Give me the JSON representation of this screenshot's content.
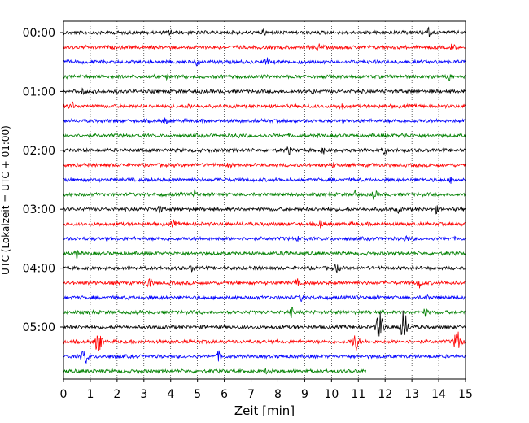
{
  "chart_data": {
    "type": "line",
    "title": "",
    "xlabel": "Zeit  [min]",
    "ylabel": "UTC (Lokalzeit = UTC + 01:00)",
    "xlim": [
      0,
      15
    ],
    "x_ticks": [
      "0",
      "1",
      "2",
      "3",
      "4",
      "5",
      "6",
      "7",
      "8",
      "9",
      "10",
      "11",
      "12",
      "13",
      "14",
      "15"
    ],
    "row_interval_min": 15,
    "row_colors": [
      "#000000",
      "#ff0000",
      "#0000ff",
      "#008000"
    ],
    "y_tick_labels": [
      {
        "row": 0,
        "label": "00:00"
      },
      {
        "row": 4,
        "label": "01:00"
      },
      {
        "row": 8,
        "label": "02:00"
      },
      {
        "row": 12,
        "label": "03:00"
      },
      {
        "row": 16,
        "label": "04:00"
      },
      {
        "row": 20,
        "label": "05:00"
      }
    ],
    "grid": "vertical dotted",
    "series": [
      {
        "start": "00:00",
        "color": "#000000",
        "end_min": 15,
        "bursts": [
          {
            "t": 4.0,
            "a": 3
          },
          {
            "t": 7.5,
            "a": 3
          },
          {
            "t": 13.6,
            "a": 5
          }
        ]
      },
      {
        "start": "00:15",
        "color": "#ff0000",
        "end_min": 15,
        "bursts": [
          {
            "t": 9.5,
            "a": 4
          },
          {
            "t": 14.5,
            "a": 4
          }
        ]
      },
      {
        "start": "00:30",
        "color": "#0000ff",
        "end_min": 15,
        "bursts": [
          {
            "t": 5.0,
            "a": 3
          },
          {
            "t": 7.6,
            "a": 4
          }
        ]
      },
      {
        "start": "00:45",
        "color": "#008000",
        "end_min": 15,
        "bursts": [
          {
            "t": 3.9,
            "a": 3
          },
          {
            "t": 14.4,
            "a": 4
          }
        ]
      },
      {
        "start": "01:00",
        "color": "#000000",
        "end_min": 15,
        "bursts": [
          {
            "t": 0.7,
            "a": 2
          },
          {
            "t": 9.3,
            "a": 3
          }
        ]
      },
      {
        "start": "01:15",
        "color": "#ff0000",
        "end_min": 15,
        "bursts": [
          {
            "t": 0.3,
            "a": 4
          },
          {
            "t": 4.7,
            "a": 3
          },
          {
            "t": 10.4,
            "a": 3
          }
        ]
      },
      {
        "start": "01:30",
        "color": "#0000ff",
        "end_min": 15,
        "bursts": [
          {
            "t": 3.8,
            "a": 3
          }
        ]
      },
      {
        "start": "01:45",
        "color": "#008000",
        "end_min": 15,
        "bursts": [
          {
            "t": 6.5,
            "a": 2
          },
          {
            "t": 12.7,
            "a": 3
          }
        ]
      },
      {
        "start": "02:00",
        "color": "#000000",
        "end_min": 15,
        "bursts": [
          {
            "t": 8.4,
            "a": 4
          },
          {
            "t": 9.7,
            "a": 3
          },
          {
            "t": 12.0,
            "a": 5
          }
        ]
      },
      {
        "start": "02:15",
        "color": "#ff0000",
        "end_min": 15,
        "bursts": [
          {
            "t": 6.2,
            "a": 3
          },
          {
            "t": 10.1,
            "a": 3
          }
        ]
      },
      {
        "start": "02:30",
        "color": "#0000ff",
        "end_min": 15,
        "bursts": [
          {
            "t": 14.5,
            "a": 4
          }
        ]
      },
      {
        "start": "02:45",
        "color": "#008000",
        "end_min": 15,
        "bursts": [
          {
            "t": 4.9,
            "a": 4
          },
          {
            "t": 10.9,
            "a": 4
          },
          {
            "t": 11.6,
            "a": 5
          }
        ]
      },
      {
        "start": "03:00",
        "color": "#000000",
        "end_min": 15,
        "bursts": [
          {
            "t": 3.6,
            "a": 4
          },
          {
            "t": 12.5,
            "a": 3
          },
          {
            "t": 13.9,
            "a": 4
          }
        ]
      },
      {
        "start": "03:15",
        "color": "#ff0000",
        "end_min": 15,
        "bursts": [
          {
            "t": 4.1,
            "a": 3
          },
          {
            "t": 9.6,
            "a": 4
          }
        ]
      },
      {
        "start": "03:30",
        "color": "#0000ff",
        "end_min": 15,
        "bursts": [
          {
            "t": 8.8,
            "a": 3
          },
          {
            "t": 12.8,
            "a": 3
          }
        ]
      },
      {
        "start": "03:45",
        "color": "#008000",
        "end_min": 15,
        "bursts": [
          {
            "t": 0.5,
            "a": 4
          },
          {
            "t": 8.3,
            "a": 4
          }
        ]
      },
      {
        "start": "04:00",
        "color": "#000000",
        "end_min": 15,
        "bursts": [
          {
            "t": 4.8,
            "a": 3
          },
          {
            "t": 10.2,
            "a": 5
          }
        ]
      },
      {
        "start": "04:15",
        "color": "#ff0000",
        "end_min": 15,
        "bursts": [
          {
            "t": 3.2,
            "a": 7
          },
          {
            "t": 8.7,
            "a": 4
          },
          {
            "t": 13.3,
            "a": 5
          }
        ]
      },
      {
        "start": "04:30",
        "color": "#0000ff",
        "end_min": 15,
        "bursts": [
          {
            "t": 8.9,
            "a": 4
          },
          {
            "t": 13.6,
            "a": 3
          }
        ]
      },
      {
        "start": "04:45",
        "color": "#008000",
        "end_min": 15,
        "bursts": [
          {
            "t": 8.5,
            "a": 5
          },
          {
            "t": 13.5,
            "a": 4
          }
        ]
      },
      {
        "start": "05:00",
        "color": "#000000",
        "end_min": 15,
        "bursts": [
          {
            "t": 11.8,
            "a": 18
          },
          {
            "t": 12.7,
            "a": 20
          }
        ]
      },
      {
        "start": "05:15",
        "color": "#ff0000",
        "end_min": 15,
        "bursts": [
          {
            "t": 1.3,
            "a": 13
          },
          {
            "t": 10.9,
            "a": 10
          },
          {
            "t": 14.7,
            "a": 14
          }
        ]
      },
      {
        "start": "05:30",
        "color": "#0000ff",
        "end_min": 15,
        "bursts": [
          {
            "t": 0.8,
            "a": 9
          },
          {
            "t": 5.8,
            "a": 5
          }
        ]
      },
      {
        "start": "05:45",
        "color": "#008000",
        "end_min": 11.3,
        "bursts": [
          {
            "t": 7.6,
            "a": 3
          }
        ]
      }
    ]
  }
}
